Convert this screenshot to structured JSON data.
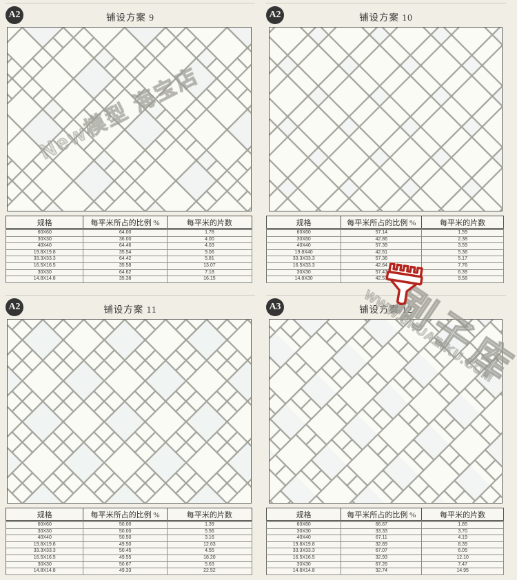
{
  "page": {
    "background": "#f0eee5",
    "tile_fill": "#fbfbf6",
    "grout_color": "#a3a39c",
    "accent_red": "#b5241c"
  },
  "table_headers": [
    "规格",
    "每平米所占的比例 %",
    "每平米的片数"
  ],
  "plans": [
    {
      "badge": "A2",
      "title": "铺设方案 9",
      "rows": [
        [
          "60X60",
          "64.00",
          "1.78"
        ],
        [
          "30X30",
          "36.00",
          "4.00"
        ],
        [
          "40X40",
          "64.46",
          "4.03"
        ],
        [
          "19.8X19.8",
          "35.54",
          "9.06"
        ],
        [
          "33.3X33.3",
          "64.42",
          "5.81"
        ],
        [
          "16.5X16.5",
          "35.58",
          "13.07"
        ],
        [
          "30X30",
          "64.62",
          "7.18"
        ],
        [
          "14.8X14.8",
          "35.38",
          "16.15"
        ]
      ]
    },
    {
      "badge": "A2",
      "title": "铺设方案 10",
      "rows": [
        [
          "60X60",
          "57.14",
          "1.59"
        ],
        [
          "30X60",
          "42.86",
          "2.38"
        ],
        [
          "40X40",
          "57.39",
          "3.59"
        ],
        [
          "19.8X40",
          "42.61",
          "5.38"
        ],
        [
          "33.3X33.3",
          "57.36",
          "5.17"
        ],
        [
          "16.5X33.3",
          "42.64",
          "7.76"
        ],
        [
          "30X30",
          "57.47",
          "6.39"
        ],
        [
          "14.8X30",
          "42.53",
          "9.58"
        ]
      ]
    },
    {
      "badge": "A2",
      "title": "铺设方案 11",
      "rows": [
        [
          "60X60",
          "50.00",
          "1.39"
        ],
        [
          "30X30",
          "50.00",
          "5.56"
        ],
        [
          "40X40",
          "50.50",
          "3.16"
        ],
        [
          "19.8X19.8",
          "49.50",
          "12.63"
        ],
        [
          "33.3X33.3",
          "50.45",
          "4.55"
        ],
        [
          "16.5X16.5",
          "49.55",
          "18.20"
        ],
        [
          "30X30",
          "50.67",
          "5.63"
        ],
        [
          "14.8X14.8",
          "49.33",
          "22.52"
        ]
      ]
    },
    {
      "badge": "A3",
      "title": "铺设方案 12",
      "rows": [
        [
          "60X60",
          "66.67",
          "1.85"
        ],
        [
          "30X30",
          "33.33",
          "3.70"
        ],
        [
          "40X40",
          "67.11",
          "4.19"
        ],
        [
          "19.8X19.8",
          "32.89",
          "8.39"
        ],
        [
          "33.3X33.3",
          "67.07",
          "6.05"
        ],
        [
          "16.5X16.5",
          "32.93",
          "12.10"
        ],
        [
          "30X30",
          "67.26",
          "7.47"
        ],
        [
          "14.8X14.8",
          "32.74",
          "14.95"
        ]
      ]
    }
  ],
  "watermarks": {
    "shop_text": "New模型 海宝店",
    "site_url": "WWW.SHUAZIKU.COM",
    "site_name": "刷子库",
    "brush_icon_color": "#b5241c"
  }
}
